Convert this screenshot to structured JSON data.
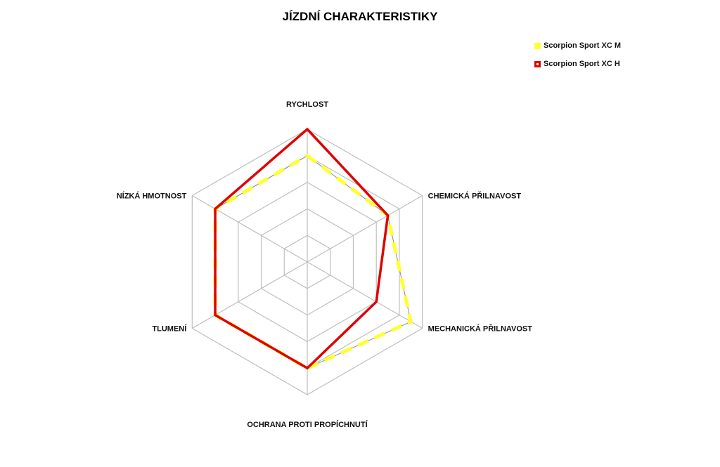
{
  "chart_data": {
    "type": "radar",
    "title": "JÍZDNÍ CHARAKTERISTIKY",
    "axes": [
      "RYCHLOST",
      "CHEMICKÁ PŘILNAVOST",
      "MECHANICKÁ PŘILNAVOST",
      "OCHRANA PROTI PROPÍCHNUTÍ",
      "TLUMENÍ",
      "NÍZKÁ HMOTNOST"
    ],
    "rmax": 5,
    "rings": 5,
    "grid": true,
    "legend_position": "top-right",
    "series": [
      {
        "name": "Scorpion Sport XC M",
        "color": "#ffff33",
        "dash": true,
        "values": [
          4,
          3.5,
          4.5,
          4,
          4,
          4
        ]
      },
      {
        "name": "Scorpion Sport XC H",
        "color": "#e00000",
        "dash": false,
        "values": [
          5,
          3.5,
          3,
          4,
          4,
          4
        ]
      }
    ]
  }
}
